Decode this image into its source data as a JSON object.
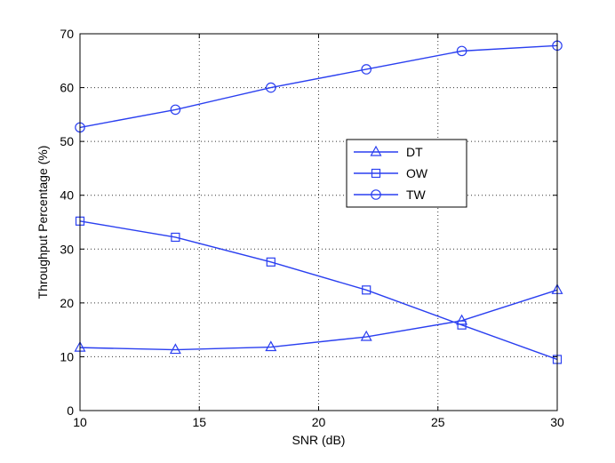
{
  "chart_data": {
    "type": "line",
    "title": "",
    "xlabel": "SNR (dB)",
    "ylabel": "Throughput Percentage (%)",
    "xlim": [
      10,
      30
    ],
    "ylim": [
      0,
      70
    ],
    "xticks": [
      10,
      15,
      20,
      25,
      30
    ],
    "yticks": [
      0,
      10,
      20,
      30,
      40,
      50,
      60,
      70
    ],
    "grid": true,
    "grid_style": "dotted",
    "legend_position": "center-right",
    "line_color": "#2a3ff0",
    "x": [
      10,
      14,
      18,
      22,
      26,
      30
    ],
    "series": [
      {
        "name": "DT",
        "marker": "triangle",
        "values": [
          11.7,
          11.3,
          11.8,
          13.7,
          16.7,
          22.4
        ]
      },
      {
        "name": "OW",
        "marker": "square",
        "values": [
          35.2,
          32.2,
          27.6,
          22.4,
          15.9,
          9.5
        ]
      },
      {
        "name": "TW",
        "marker": "circle",
        "values": [
          52.6,
          55.9,
          60.0,
          63.4,
          66.8,
          67.8
        ]
      }
    ]
  }
}
